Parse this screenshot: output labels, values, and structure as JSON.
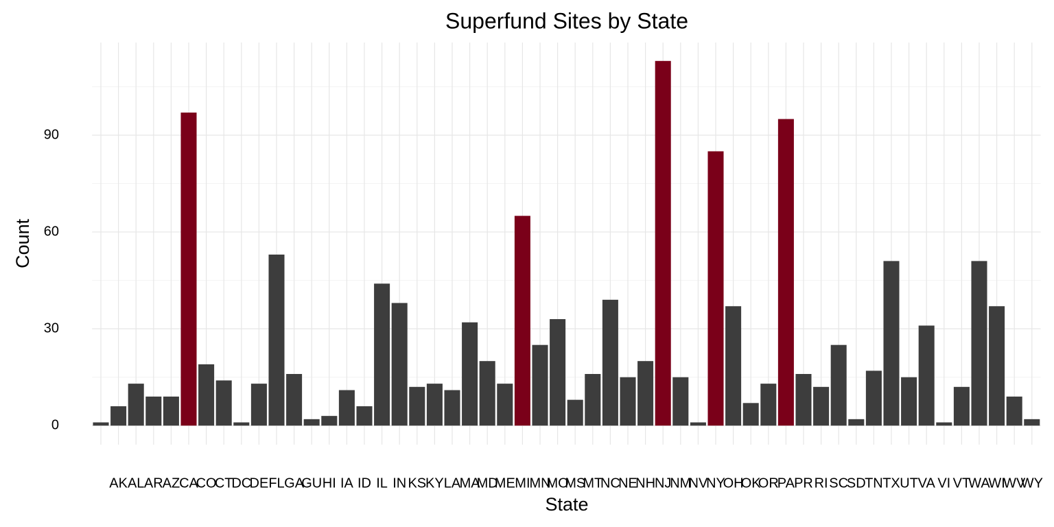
{
  "chart_data": {
    "type": "bar",
    "title": "Superfund Sites by State",
    "x_label": "State",
    "y_label": "Count",
    "categories": [
      null,
      "AK",
      "AL",
      "AR",
      "AZ",
      "CA",
      "CO",
      "CT",
      "DC",
      "DE",
      "FL",
      "GA",
      "GU",
      "HI",
      "IA",
      "ID",
      "IL",
      "IN",
      "KS",
      "KY",
      "LA",
      "MA",
      "MD",
      "ME",
      "MI",
      "MN",
      "MO",
      "MS",
      "MT",
      "NC",
      "NE",
      "NH",
      "NJ",
      "NM",
      "NV",
      "NY",
      "OH",
      "OK",
      "OR",
      "PA",
      "PR",
      "RI",
      "SC",
      "SD",
      "TN",
      "TX",
      "UT",
      "VA",
      "VI",
      "VT",
      "WA",
      "WI",
      "WV",
      "WY"
    ],
    "values": [
      1,
      6,
      13,
      9,
      9,
      97,
      19,
      14,
      1,
      13,
      53,
      16,
      2,
      3,
      11,
      6,
      44,
      38,
      12,
      13,
      11,
      32,
      20,
      13,
      65,
      25,
      33,
      8,
      16,
      39,
      15,
      20,
      113,
      15,
      1,
      85,
      37,
      7,
      13,
      95,
      16,
      12,
      25,
      2,
      17,
      51,
      15,
      31,
      1,
      12,
      51,
      37,
      9,
      2
    ],
    "colors": [
      "#3d3d3d",
      "#3d3d3d",
      "#3d3d3d",
      "#3d3d3d",
      "#3d3d3d",
      "#7a0019",
      "#3d3d3d",
      "#3d3d3d",
      "#3d3d3d",
      "#3d3d3d",
      "#3d3d3d",
      "#3d3d3d",
      "#3d3d3d",
      "#3d3d3d",
      "#3d3d3d",
      "#3d3d3d",
      "#3d3d3d",
      "#3d3d3d",
      "#3d3d3d",
      "#3d3d3d",
      "#3d3d3d",
      "#3d3d3d",
      "#3d3d3d",
      "#3d3d3d",
      "#7a0019",
      "#3d3d3d",
      "#3d3d3d",
      "#3d3d3d",
      "#3d3d3d",
      "#3d3d3d",
      "#3d3d3d",
      "#3d3d3d",
      "#7a0019",
      "#3d3d3d",
      "#3d3d3d",
      "#7a0019",
      "#3d3d3d",
      "#3d3d3d",
      "#3d3d3d",
      "#7a0019",
      "#3d3d3d",
      "#3d3d3d",
      "#3d3d3d",
      "#3d3d3d",
      "#3d3d3d",
      "#3d3d3d",
      "#3d3d3d",
      "#3d3d3d",
      "#3d3d3d",
      "#3d3d3d",
      "#3d3d3d",
      "#3d3d3d",
      "#3d3d3d",
      "#3d3d3d"
    ],
    "ylim": [
      -5.9,
      118.7
    ],
    "yticks": [
      0,
      30,
      60,
      90
    ],
    "y_minor_ticks": [
      15,
      45,
      75,
      105
    ],
    "grid": true
  }
}
